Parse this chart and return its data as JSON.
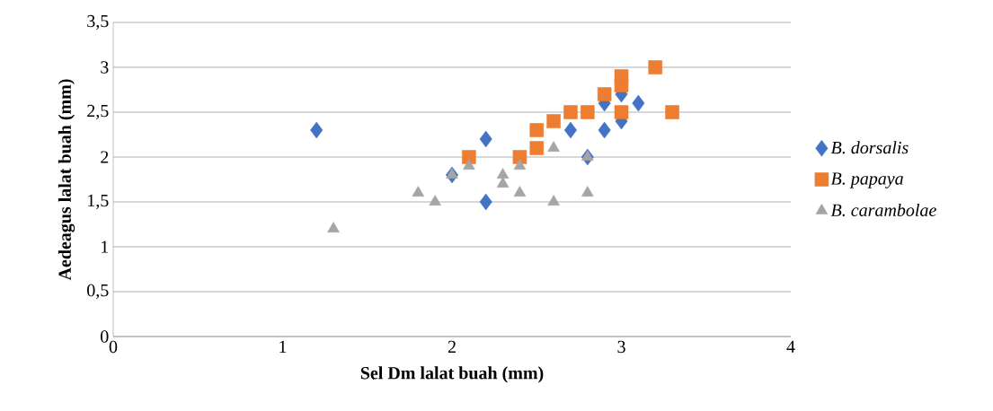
{
  "chart_data": {
    "type": "scatter",
    "xlabel": "Sel Dm lalat buah (mm)",
    "ylabel": "Aedeagus lalat buah (mm)",
    "series": [
      {
        "name": "B. dorsalis",
        "color": "#4472c4",
        "marker": "diamond",
        "x": [
          1.2,
          2.0,
          2.2,
          2.2,
          2.7,
          2.8,
          2.9,
          2.9,
          3.0,
          3.0,
          3.1
        ],
        "values": [
          2.3,
          1.8,
          2.2,
          1.5,
          2.3,
          2.0,
          2.3,
          2.6,
          2.7,
          2.4,
          2.6
        ]
      },
      {
        "name": "B. papaya",
        "color": "#ed7d31",
        "marker": "square",
        "x": [
          2.1,
          2.4,
          2.5,
          2.5,
          2.6,
          2.7,
          2.8,
          2.9,
          3.0,
          3.0,
          3.0,
          3.2,
          3.3
        ],
        "values": [
          2.0,
          2.0,
          2.1,
          2.3,
          2.4,
          2.5,
          2.5,
          2.7,
          2.5,
          2.8,
          2.9,
          3.0,
          2.5
        ]
      },
      {
        "name": "B. carambolae",
        "color": "#a5a5a5",
        "marker": "triangle",
        "x": [
          1.3,
          1.8,
          1.9,
          2.0,
          2.1,
          2.3,
          2.3,
          2.4,
          2.4,
          2.6,
          2.6,
          2.8,
          2.8
        ],
        "values": [
          1.2,
          1.6,
          1.5,
          1.8,
          1.9,
          1.8,
          1.7,
          1.9,
          1.6,
          2.1,
          1.5,
          2.0,
          1.6
        ]
      }
    ],
    "xlim": [
      0,
      4
    ],
    "xticks": [
      0,
      1,
      2,
      3,
      4
    ],
    "ylim": [
      0,
      3.5
    ],
    "yticks": [
      0,
      {
        "value": 0.5,
        "label": "0,5"
      },
      1,
      {
        "value": 1.5,
        "label": "1,5"
      },
      2,
      {
        "value": 2.5,
        "label": "2,5"
      },
      3,
      {
        "value": 3.5,
        "label": "3,5"
      }
    ],
    "grid": "y",
    "legend": "right"
  }
}
